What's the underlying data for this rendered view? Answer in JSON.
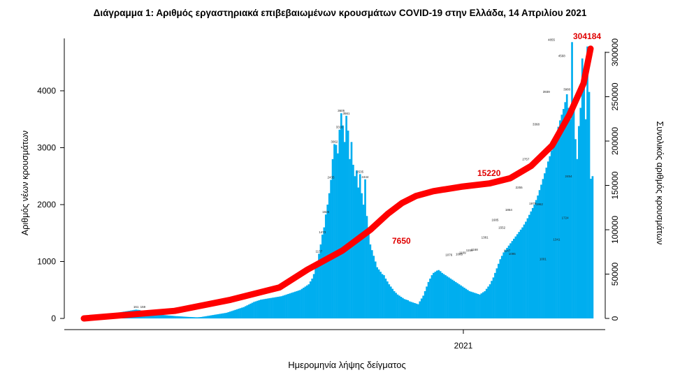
{
  "title": "Διάγραμμα 1: Αριθμός εργαστηριακά επιβεβαιωμένων κρουσμάτων COVID-19 στην Ελλάδα, 14 Απριλίου 2021",
  "chart_data": {
    "type": "bar",
    "title": "Διάγραμμα 1: Αριθμός εργαστηριακά επιβεβαιωμένων κρουσμάτων COVID-19 στην Ελλάδα, 14 Απριλίου 2021",
    "xlabel": "Ημερομηνία λήψης δείγματος",
    "ylabel": "Αριθμός νέων κρουσμάτων",
    "y2label": "Συνολικός αριθμός κρουσμάτων",
    "x_tick_labels": [
      "2021"
    ],
    "y_ticks": [
      0,
      1000,
      2000,
      3000,
      4000
    ],
    "ylim": [
      0,
      4900
    ],
    "y2_ticks": [
      0,
      50000,
      100000,
      150000,
      200000,
      250000,
      300000
    ],
    "y2lim": [
      0,
      317000
    ],
    "grid": false,
    "series": [
      {
        "kind": "bar",
        "color": "#00aeef",
        "values": [
          2,
          3,
          5,
          6,
          8,
          10,
          14,
          18,
          22,
          25,
          30,
          35,
          40,
          50,
          60,
          70,
          80,
          90,
          95,
          100,
          105,
          110,
          115,
          120,
          125,
          130,
          135,
          140,
          145,
          150,
          155,
          151,
          148,
          140,
          132,
          125,
          118,
          110,
          102,
          95,
          90,
          85,
          80,
          75,
          70,
          65,
          60,
          58,
          55,
          52,
          50,
          48,
          45,
          42,
          40,
          38,
          36,
          34,
          32,
          30,
          28,
          26,
          25,
          24,
          22,
          20,
          20,
          22,
          25,
          30,
          35,
          40,
          45,
          50,
          55,
          60,
          65,
          70,
          75,
          80,
          85,
          90,
          95,
          100,
          110,
          120,
          130,
          140,
          150,
          160,
          170,
          180,
          190,
          200,
          215,
          230,
          245,
          260,
          275,
          290,
          300,
          310,
          320,
          330,
          335,
          340,
          345,
          350,
          355,
          360,
          365,
          370,
          375,
          380,
          385,
          390,
          400,
          410,
          420,
          430,
          440,
          450,
          460,
          470,
          480,
          490,
          500,
          520,
          540,
          560,
          580,
          600,
          650,
          700,
          780,
          880,
          1000,
          1137,
          1300,
          1473,
          1600,
          1826,
          2000,
          2200,
          2435,
          2800,
          3062,
          3050,
          2900,
          3316,
          3605,
          3390,
          3100,
          3561,
          3300,
          2800,
          3100,
          2700,
          2500,
          2600,
          2300,
          2535,
          2200,
          2000,
          2444,
          1800,
          1600,
          1300,
          1200,
          1100,
          1000,
          900,
          860,
          820,
          780,
          760,
          700,
          650,
          600,
          560,
          520,
          480,
          450,
          420,
          400,
          380,
          360,
          340,
          330,
          320,
          300,
          290,
          280,
          270,
          260,
          250,
          300,
          350,
          400,
          480,
          560,
          640,
          700,
          760,
          800,
          820,
          840,
          850,
          830,
          800,
          780,
          760,
          740,
          720,
          700,
          680,
          660,
          640,
          620,
          600,
          580,
          560,
          540,
          520,
          500,
          480,
          470,
          460,
          450,
          440,
          430,
          420,
          440,
          460,
          480,
          520,
          560,
          600,
          660,
          720,
          800,
          880,
          960,
          1040,
          1100,
          1160,
          1200,
          1240,
          1280,
          1320,
          1360,
          1400,
          1440,
          1480,
          1520,
          1560,
          1600,
          1650,
          1700,
          1760,
          1820,
          1880,
          1940,
          2000,
          2080,
          2160,
          2255,
          2350,
          2450,
          2550,
          2650,
          2757,
          2850,
          2950,
          3050,
          3150,
          3250,
          3368,
          3480,
          3580,
          3680,
          3800,
          3939,
          3700,
          3500,
          4855,
          3650,
          3150,
          2800,
          3380,
          3700,
          4568,
          4100,
          3500,
          4778,
          3980,
          2454,
          2500
        ]
      },
      {
        "kind": "line",
        "color": "#ff0000",
        "axis": "right",
        "values": [
          0,
          8500,
          21000,
          35000,
          55000,
          76500,
          100000,
          118000,
          130000,
          138000,
          143500,
          148500,
          152200,
          158000,
          172000,
          195000,
          230000,
          265000,
          304184
        ]
      }
    ],
    "annotations": [
      "7650",
      "15220",
      "304184"
    ],
    "bar_labels": [
      "1137",
      "1473",
      "1826",
      "2435",
      "3062",
      "3316",
      "3605",
      "3561",
      "2535",
      "2444",
      "1109",
      "1168",
      "1156",
      "1085",
      "1076",
      "1381",
      "1685",
      "1552",
      "1864",
      "2255",
      "2757",
      "3368",
      "3939",
      "4855",
      "4568",
      "3980",
      "2454",
      "1147",
      "1341",
      "1724",
      "1978",
      "1962",
      "1001",
      "1095",
      "161",
      "159"
    ]
  }
}
